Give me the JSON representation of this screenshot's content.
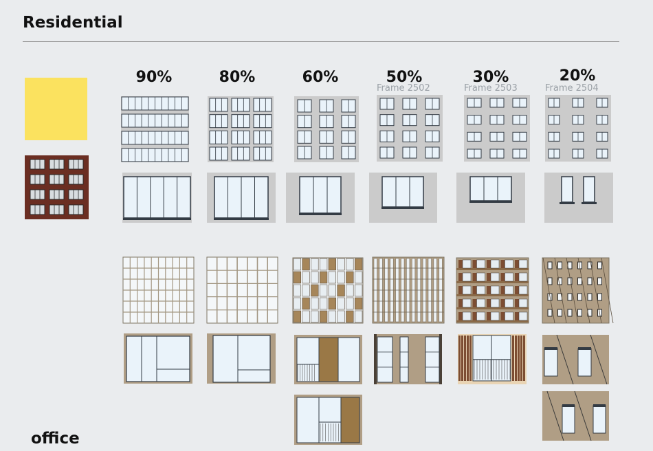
{
  "heading": "Residential",
  "footer_heading": "office",
  "swatch_color": "#fbe25f",
  "percent_labels": [
    "90%",
    "80%",
    "60%",
    "50%",
    "30%",
    "20%"
  ],
  "frame_labels": [
    "Frame 2502",
    "Frame 2503",
    "Frame 2504"
  ],
  "colors": {
    "facade_gray": "#cbcbcb",
    "glass": "#eaf3fa",
    "frame_dark": "#333b44",
    "wood": "#a6865a",
    "tan": "#b09e85",
    "brick": "#6b2e22"
  }
}
